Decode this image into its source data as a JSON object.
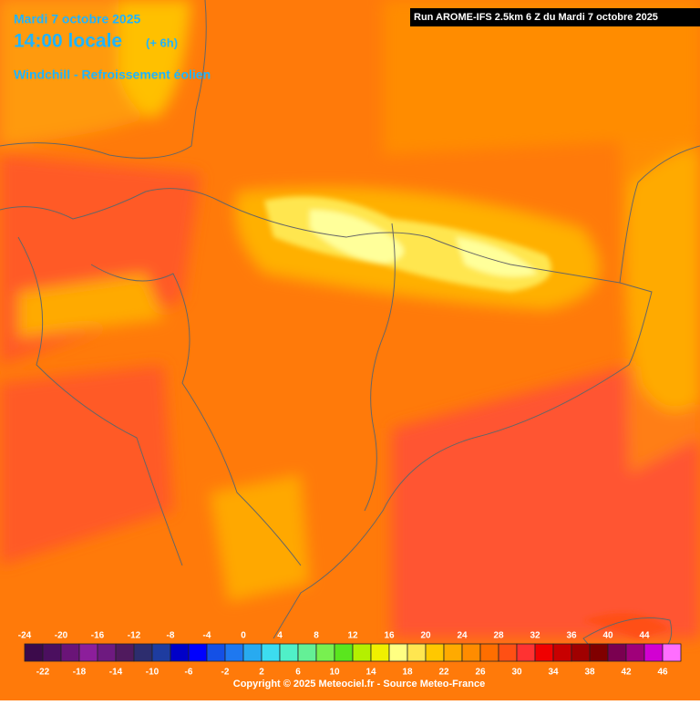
{
  "header": {
    "date": "Mardi 7 octobre 2025",
    "time": "14:00 locale",
    "offset": "(+ 6h)",
    "parameter": "Windchill - Refroissement éolien",
    "run": "Run AROME-IFS 2.5km 6 Z du Mardi 7 octobre 2025"
  },
  "legend": {
    "values": [
      -24,
      -22,
      -20,
      -18,
      -16,
      -14,
      -12,
      -10,
      -8,
      -6,
      -4,
      -2,
      0,
      2,
      4,
      6,
      8,
      10,
      12,
      14,
      16,
      18,
      20,
      22,
      24,
      26,
      28,
      30,
      32,
      34,
      36,
      38,
      40,
      42,
      44,
      46
    ],
    "colors": [
      "#3c0a4b",
      "#4b0f5f",
      "#6a1478",
      "#8c1e9b",
      "#6e1a80",
      "#501a5e",
      "#2d2d6e",
      "#1e3ca0",
      "#0000c8",
      "#0000ff",
      "#1450e6",
      "#1e78f0",
      "#28aaf0",
      "#3cdcf0",
      "#50f0c8",
      "#64f096",
      "#78f050",
      "#5ae61e",
      "#b4f000",
      "#f0f000",
      "#ffff82",
      "#ffe650",
      "#ffc800",
      "#ffaa00",
      "#ff8c00",
      "#ff6e00",
      "#ff5014",
      "#ff3232",
      "#f00000",
      "#c80000",
      "#a00000",
      "#800000",
      "#7a0050",
      "#a0007a",
      "#d200d2",
      "#ff6eff"
    ]
  },
  "footer": {
    "copyright": "Copyright © 2025 Meteociel.fr - Source Meteo-France"
  }
}
